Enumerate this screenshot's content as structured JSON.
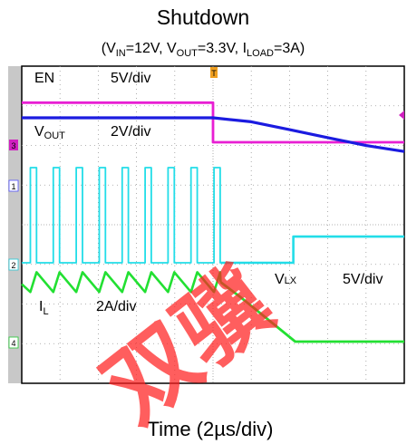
{
  "chart_data": {
    "type": "line",
    "title": "Shutdown",
    "subtitle": {
      "prefix": "(V",
      "vin_sub": "IN",
      "vin_val": "=12V, V",
      "vout_sub": "OUT",
      "vout_val": "=3.3V, I",
      "iload_sub": "LOAD",
      "iload_val": "=3A)"
    },
    "xlabel": "Time (2µs/div)",
    "x_unit": "µs",
    "xlim": [
      -10,
      10
    ],
    "grid": true,
    "divisions": {
      "x": 10,
      "y": 8
    },
    "channel_markers": [
      "3",
      "1",
      "2",
      "4"
    ],
    "trigger_marker": "T",
    "series": [
      {
        "name": "EN",
        "label": {
          "main": "EN",
          "sub": ""
        },
        "scale": "5V/div",
        "color": "#e81fd3",
        "x": [
          -10,
          0,
          0,
          10
        ],
        "y": [
          5.0,
          5.0,
          0.0,
          0.0
        ]
      },
      {
        "name": "VOUT",
        "label": {
          "main": "V",
          "sub": "OUT"
        },
        "scale": "2V/div",
        "color": "#1b1be0",
        "x": [
          -10,
          0,
          2,
          4,
          6,
          8,
          10
        ],
        "y": [
          3.3,
          3.3,
          3.1,
          2.7,
          2.3,
          1.9,
          1.6
        ]
      },
      {
        "name": "VLX",
        "label": {
          "main": "V",
          "sub": "LX"
        },
        "scale": "5V/div",
        "color": "#22dde8",
        "switching": {
          "x_start": -10,
          "x_stop": 0.4,
          "period_us": 1.2,
          "duty": 0.27,
          "high": 12,
          "low": 0
        },
        "x": [
          0.4,
          4.2,
          4.2,
          4.5,
          10
        ],
        "y": [
          0,
          0,
          3.3,
          3.3,
          3.3
        ]
      },
      {
        "name": "IL",
        "label": {
          "main": "I",
          "sub": "L"
        },
        "scale": "2A/div",
        "color": "#22e032",
        "ripple": {
          "x_start": -10,
          "x_stop": 0.4,
          "period_us": 1.2,
          "duty": 0.27,
          "peak": 3.5,
          "valley": 2.5
        },
        "x": [
          0.4,
          1.5,
          4.3,
          10
        ],
        "y": [
          3.0,
          2.2,
          0.0,
          0.0
        ]
      }
    ]
  },
  "watermark": "双骥"
}
